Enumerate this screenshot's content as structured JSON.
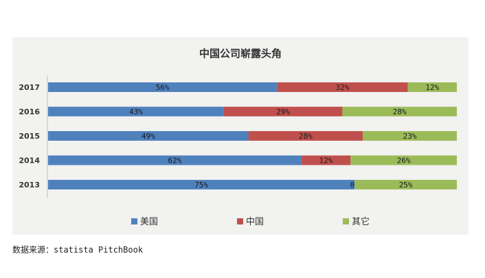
{
  "chart_data": {
    "type": "bar",
    "stacked": true,
    "orientation": "horizontal",
    "title": "中国公司崭露头角",
    "categories": [
      "2017",
      "2016",
      "2015",
      "2014",
      "2013"
    ],
    "series": [
      {
        "name": "美国",
        "color": "#4f81bd",
        "values": [
          56,
          43,
          49,
          62,
          75
        ],
        "labels": [
          "56%",
          "43%",
          "49%",
          "62%",
          "75%"
        ]
      },
      {
        "name": "中国",
        "color": "#c0504d",
        "values": [
          32,
          29,
          28,
          12,
          0
        ],
        "labels": [
          "32%",
          "29%",
          "28%",
          "12%",
          "0%"
        ]
      },
      {
        "name": "其它",
        "color": "#9bbb59",
        "values": [
          12,
          28,
          23,
          26,
          25
        ],
        "labels": [
          "12%",
          "28%",
          "23%",
          "26%",
          "25%"
        ]
      }
    ],
    "xlim": [
      0,
      100
    ],
    "grid": false,
    "legend": "bottom"
  },
  "source": "数据来源：statista PitchBook"
}
